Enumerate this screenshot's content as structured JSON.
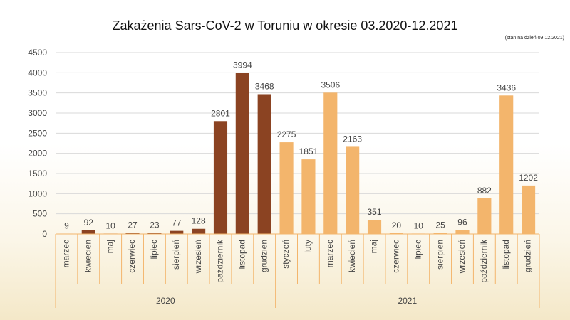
{
  "chart_data": {
    "type": "bar",
    "title": "Zakażenia Sars-CoV-2 w Toruniu w okresie 03.2020-12.2021",
    "note": "(stan na dzień 09.12.2021)",
    "xlabel": "",
    "ylabel": "",
    "ylim": [
      0,
      4500
    ],
    "yticks": [
      0,
      500,
      1000,
      1500,
      2000,
      2500,
      3000,
      3500,
      4000,
      4500
    ],
    "grid": true,
    "groups": [
      {
        "label": "2020",
        "color": "#8b4322",
        "categories": [
          "marzec",
          "kwiecień",
          "maj",
          "czerwiec",
          "lipiec",
          "sierpień",
          "wrzesień",
          "październik",
          "listopad",
          "grudzień"
        ],
        "values": [
          9,
          92,
          10,
          27,
          23,
          77,
          128,
          2801,
          3994,
          3468
        ]
      },
      {
        "label": "2021",
        "color": "#f3b56c",
        "categories": [
          "styczeń",
          "luty",
          "marzec",
          "kwiecień",
          "maj",
          "czerwiec",
          "lipiec",
          "sierpień",
          "wrzesień",
          "październik",
          "listopad",
          "grudzień"
        ],
        "values": [
          2275,
          1851,
          3506,
          2163,
          351,
          20,
          10,
          25,
          96,
          882,
          3436,
          1202
        ]
      }
    ]
  }
}
